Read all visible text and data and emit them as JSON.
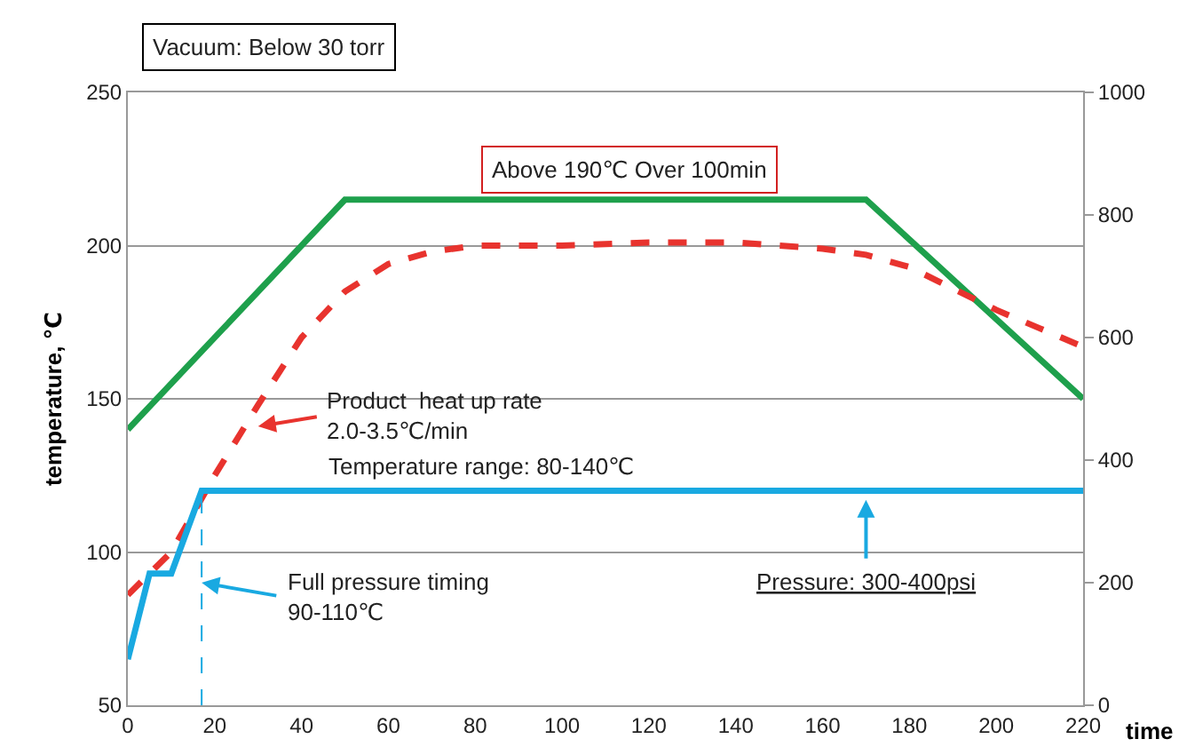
{
  "chart_data": {
    "type": "line",
    "xlabel": "time",
    "ylabel": "temperature, ℃",
    "xlim": [
      0,
      220
    ],
    "xticks": [
      0,
      20,
      40,
      60,
      80,
      100,
      120,
      140,
      160,
      180,
      200,
      220
    ],
    "ylim": [
      50,
      250
    ],
    "yticks": [
      50,
      100,
      150,
      200,
      250
    ],
    "y2lim": [
      0,
      1000
    ],
    "y2ticks": [
      0,
      200,
      400,
      600,
      800,
      1000
    ],
    "ref_lines": [
      {
        "axis": "x",
        "value": 17,
        "color": "#19a9e1",
        "line_style": "dashed"
      }
    ],
    "grid": "y",
    "marker": "none",
    "series": [
      {
        "color": "#1ea04c",
        "line_style": "solid",
        "x": [
          0,
          50,
          170,
          220
        ],
        "values": [
          140,
          215,
          215,
          150
        ]
      },
      {
        "color": "#e8332e",
        "line_style": "dashed",
        "x": [
          0,
          10,
          20,
          30,
          40,
          50,
          60,
          70,
          80,
          100,
          120,
          140,
          160,
          170,
          180,
          190,
          200,
          210,
          220
        ],
        "values": [
          86,
          100,
          125,
          148,
          170,
          185,
          194,
          198,
          200,
          200,
          201,
          201,
          199,
          197,
          193,
          186,
          179,
          173,
          167
        ]
      },
      {
        "color": "#19a9e1",
        "line_style": "solid",
        "axis": "y2",
        "x": [
          0,
          5,
          10,
          17,
          220
        ],
        "values": [
          75,
          215,
          215,
          350,
          350
        ]
      }
    ],
    "annotations": [
      "Vacuum: Below 30 torr",
      "Above 190℃ Over 100min",
      {
        "text": "Product  heat up rate\n2.0-3.5℃/min",
        "x": 30,
        "y": 141
      },
      "Temperature range: 80-140℃",
      {
        "text": "Full pressure timing\n90-110℃",
        "x": 17,
        "y": 90
      },
      {
        "text": "Pressure: 300-400psi",
        "x": 170,
        "y": 117
      }
    ]
  }
}
